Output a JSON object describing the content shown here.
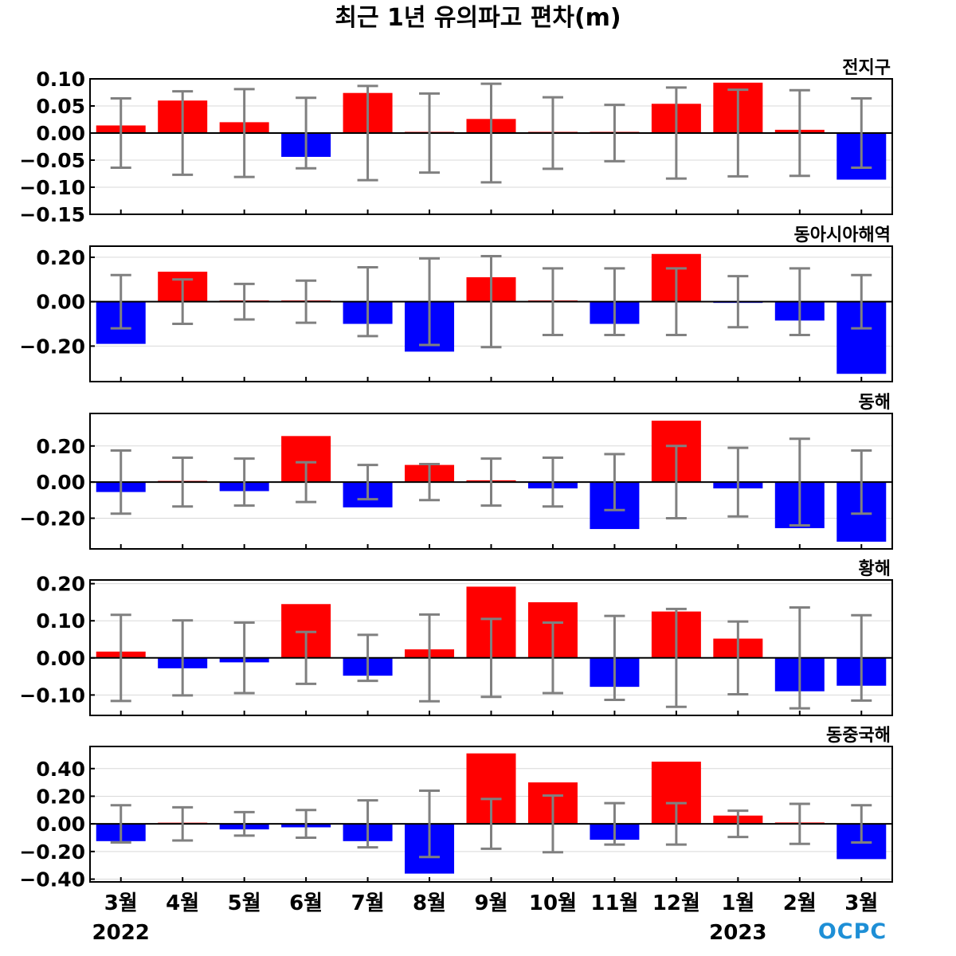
{
  "chart_data": {
    "type": "bar",
    "title": "최근 1년 유의파고 편차(m)",
    "categories": [
      "3월",
      "4월",
      "5월",
      "6월",
      "7월",
      "8월",
      "9월",
      "10월",
      "11월",
      "12월",
      "1월",
      "2월",
      "3월"
    ],
    "years": [
      {
        "label": "2022",
        "category_index": 0
      },
      {
        "label": "2023",
        "category_index": 10
      }
    ],
    "logo": "OCPC",
    "colors": {
      "positive": "#ff0000",
      "negative": "#0000ff",
      "error_bar": "#808080",
      "zero_line": "#000000",
      "grid": "#d9d9d9"
    },
    "panels": [
      {
        "name": "전지구",
        "ylim": [
          -0.15,
          0.1
        ],
        "yticks": [
          0.1,
          0.05,
          0.0,
          -0.05,
          -0.1,
          -0.15
        ],
        "ytick_labels": [
          "0.10",
          "0.05",
          "0.00",
          "−0.05",
          "−0.10",
          "−0.15"
        ],
        "values": [
          0.014,
          0.06,
          0.02,
          -0.044,
          0.074,
          0.0,
          0.026,
          0.001,
          0.0,
          0.054,
          0.093,
          0.006,
          -0.086
        ],
        "error": [
          0.064,
          0.077,
          0.081,
          0.065,
          0.087,
          0.073,
          0.091,
          0.066,
          0.052,
          0.084,
          0.08,
          0.079,
          0.064
        ]
      },
      {
        "name": "동아시아해역",
        "ylim": [
          -0.36,
          0.25
        ],
        "yticks": [
          0.2,
          0.0,
          -0.2
        ],
        "ytick_labels": [
          "0.20",
          "0.00",
          "−0.20"
        ],
        "values": [
          -0.19,
          0.135,
          0.0,
          0.0,
          -0.1,
          -0.225,
          0.11,
          0.005,
          -0.1,
          0.215,
          -0.005,
          -0.085,
          -0.325
        ],
        "error": [
          0.12,
          0.1,
          0.08,
          0.095,
          0.155,
          0.195,
          0.205,
          0.15,
          0.15,
          0.15,
          0.115,
          0.15,
          0.12
        ]
      },
      {
        "name": "동해",
        "ylim": [
          -0.37,
          0.38
        ],
        "yticks": [
          0.2,
          0.0,
          -0.2
        ],
        "ytick_labels": [
          "0.20",
          "0.00",
          "−0.20"
        ],
        "values": [
          -0.055,
          0.0,
          -0.05,
          0.255,
          -0.14,
          0.095,
          0.01,
          -0.035,
          -0.26,
          0.34,
          -0.035,
          -0.255,
          -0.33
        ],
        "error": [
          0.175,
          0.135,
          0.13,
          0.11,
          0.095,
          0.1,
          0.13,
          0.135,
          0.155,
          0.2,
          0.19,
          0.24,
          0.175
        ]
      },
      {
        "name": "황해",
        "ylim": [
          -0.155,
          0.21
        ],
        "yticks": [
          0.2,
          0.1,
          0.0,
          -0.1
        ],
        "ytick_labels": [
          "0.20",
          "0.10",
          "0.00",
          "−0.10"
        ],
        "values": [
          0.017,
          -0.028,
          -0.012,
          0.145,
          -0.048,
          0.023,
          0.192,
          0.15,
          -0.078,
          0.125,
          0.052,
          -0.09,
          -0.075
        ],
        "error": [
          0.116,
          0.101,
          0.095,
          0.07,
          0.062,
          0.117,
          0.105,
          0.095,
          0.113,
          0.132,
          0.098,
          0.136,
          0.115
        ]
      },
      {
        "name": "동중국해",
        "ylim": [
          -0.42,
          0.56
        ],
        "yticks": [
          0.4,
          0.2,
          0.0,
          -0.2,
          -0.4
        ],
        "ytick_labels": [
          "0.40",
          "0.20",
          "0.00",
          "−0.20",
          "−0.40"
        ],
        "values": [
          -0.125,
          0.0,
          -0.04,
          -0.025,
          -0.125,
          -0.36,
          0.51,
          0.3,
          -0.115,
          0.45,
          0.06,
          0.01,
          -0.255
        ],
        "error": [
          0.135,
          0.12,
          0.085,
          0.1,
          0.17,
          0.24,
          0.18,
          0.205,
          0.15,
          0.15,
          0.095,
          0.145,
          0.135
        ]
      }
    ]
  }
}
